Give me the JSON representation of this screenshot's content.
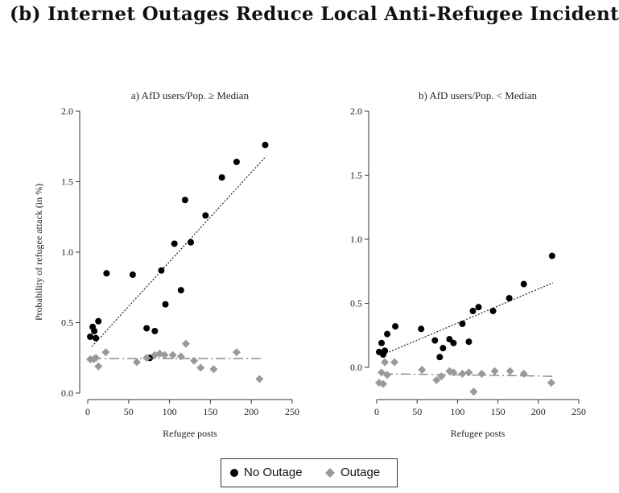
{
  "title": "(b) Internet Outages Reduce Local Anti-Refugee Incidents",
  "legend": {
    "no_outage_label": "No Outage",
    "outage_label": "Outage",
    "no_outage_color": "#000000",
    "outage_color": "#999999"
  },
  "chart_data": [
    {
      "type": "scatter",
      "title": "a) AfD users/Pop. ≥ Median",
      "xlabel": "Refugee posts",
      "ylabel": "Probability of refugee attack (in %)",
      "xlim": [
        0,
        250
      ],
      "ylim": [
        0,
        2
      ],
      "xticks": [
        "0",
        "50",
        "100",
        "150",
        "200",
        "250"
      ],
      "yticks": [
        "0.0",
        "0.5",
        "1.0",
        "1.5",
        "2.0"
      ],
      "series": [
        {
          "name": "No Outage",
          "marker": "circle",
          "points": [
            [
              3,
              0.4
            ],
            [
              6,
              0.47
            ],
            [
              8,
              0.44
            ],
            [
              10,
              0.39
            ],
            [
              13,
              0.51
            ],
            [
              23,
              0.85
            ],
            [
              55,
              0.84
            ],
            [
              72,
              0.46
            ],
            [
              76,
              0.25
            ],
            [
              82,
              0.44
            ],
            [
              90,
              0.87
            ],
            [
              95,
              0.63
            ],
            [
              106,
              1.06
            ],
            [
              114,
              0.73
            ],
            [
              119,
              1.37
            ],
            [
              126,
              1.07
            ],
            [
              144,
              1.26
            ],
            [
              164,
              1.53
            ],
            [
              182,
              1.64
            ],
            [
              217,
              1.76
            ]
          ],
          "fit": [
            [
              5,
              0.33
            ],
            [
              218,
              1.68
            ]
          ]
        },
        {
          "name": "Outage",
          "marker": "diamond",
          "points": [
            [
              3,
              0.24
            ],
            [
              7,
              0.24
            ],
            [
              10,
              0.25
            ],
            [
              13,
              0.19
            ],
            [
              22,
              0.29
            ],
            [
              60,
              0.22
            ],
            [
              72,
              0.25
            ],
            [
              82,
              0.27
            ],
            [
              88,
              0.28
            ],
            [
              94,
              0.27
            ],
            [
              104,
              0.27
            ],
            [
              114,
              0.26
            ],
            [
              120,
              0.35
            ],
            [
              130,
              0.23
            ],
            [
              138,
              0.18
            ],
            [
              154,
              0.17
            ],
            [
              182,
              0.29
            ],
            [
              210,
              0.1
            ]
          ],
          "fit": [
            [
              5,
              0.245
            ],
            [
              212,
              0.245
            ]
          ]
        }
      ]
    },
    {
      "type": "scatter",
      "title": "b) AfD users/Pop. < Median",
      "xlabel": "Refugee posts",
      "ylabel": "",
      "xlim": [
        0,
        250
      ],
      "ylim": [
        -0.2,
        2
      ],
      "xticks": [
        "0",
        "50",
        "100",
        "150",
        "200",
        "250"
      ],
      "yticks": [
        "0.0",
        "0.5",
        "1.0",
        "1.5",
        "2.0"
      ],
      "series": [
        {
          "name": "No Outage",
          "marker": "circle",
          "points": [
            [
              3,
              0.12
            ],
            [
              6,
              0.19
            ],
            [
              8,
              0.1
            ],
            [
              10,
              0.13
            ],
            [
              13,
              0.26
            ],
            [
              23,
              0.32
            ],
            [
              55,
              0.3
            ],
            [
              72,
              0.21
            ],
            [
              78,
              0.08
            ],
            [
              82,
              0.15
            ],
            [
              90,
              0.22
            ],
            [
              95,
              0.19
            ],
            [
              106,
              0.34
            ],
            [
              114,
              0.2
            ],
            [
              119,
              0.44
            ],
            [
              126,
              0.47
            ],
            [
              144,
              0.44
            ],
            [
              164,
              0.54
            ],
            [
              182,
              0.65
            ],
            [
              217,
              0.87
            ]
          ],
          "fit": [
            [
              8,
              0.1
            ],
            [
              218,
              0.66
            ]
          ]
        },
        {
          "name": "Outage",
          "marker": "diamond",
          "points": [
            [
              3,
              -0.12
            ],
            [
              6,
              -0.04
            ],
            [
              8,
              -0.13
            ],
            [
              10,
              0.04
            ],
            [
              13,
              -0.06
            ],
            [
              22,
              0.04
            ],
            [
              56,
              -0.02
            ],
            [
              74,
              -0.1
            ],
            [
              80,
              -0.07
            ],
            [
              90,
              -0.03
            ],
            [
              95,
              -0.04
            ],
            [
              106,
              -0.05
            ],
            [
              114,
              -0.04
            ],
            [
              120,
              -0.19
            ],
            [
              130,
              -0.05
            ],
            [
              146,
              -0.03
            ],
            [
              165,
              -0.03
            ],
            [
              182,
              -0.05
            ],
            [
              216,
              -0.12
            ]
          ],
          "fit": [
            [
              8,
              -0.05
            ],
            [
              218,
              -0.07
            ]
          ]
        }
      ]
    }
  ]
}
